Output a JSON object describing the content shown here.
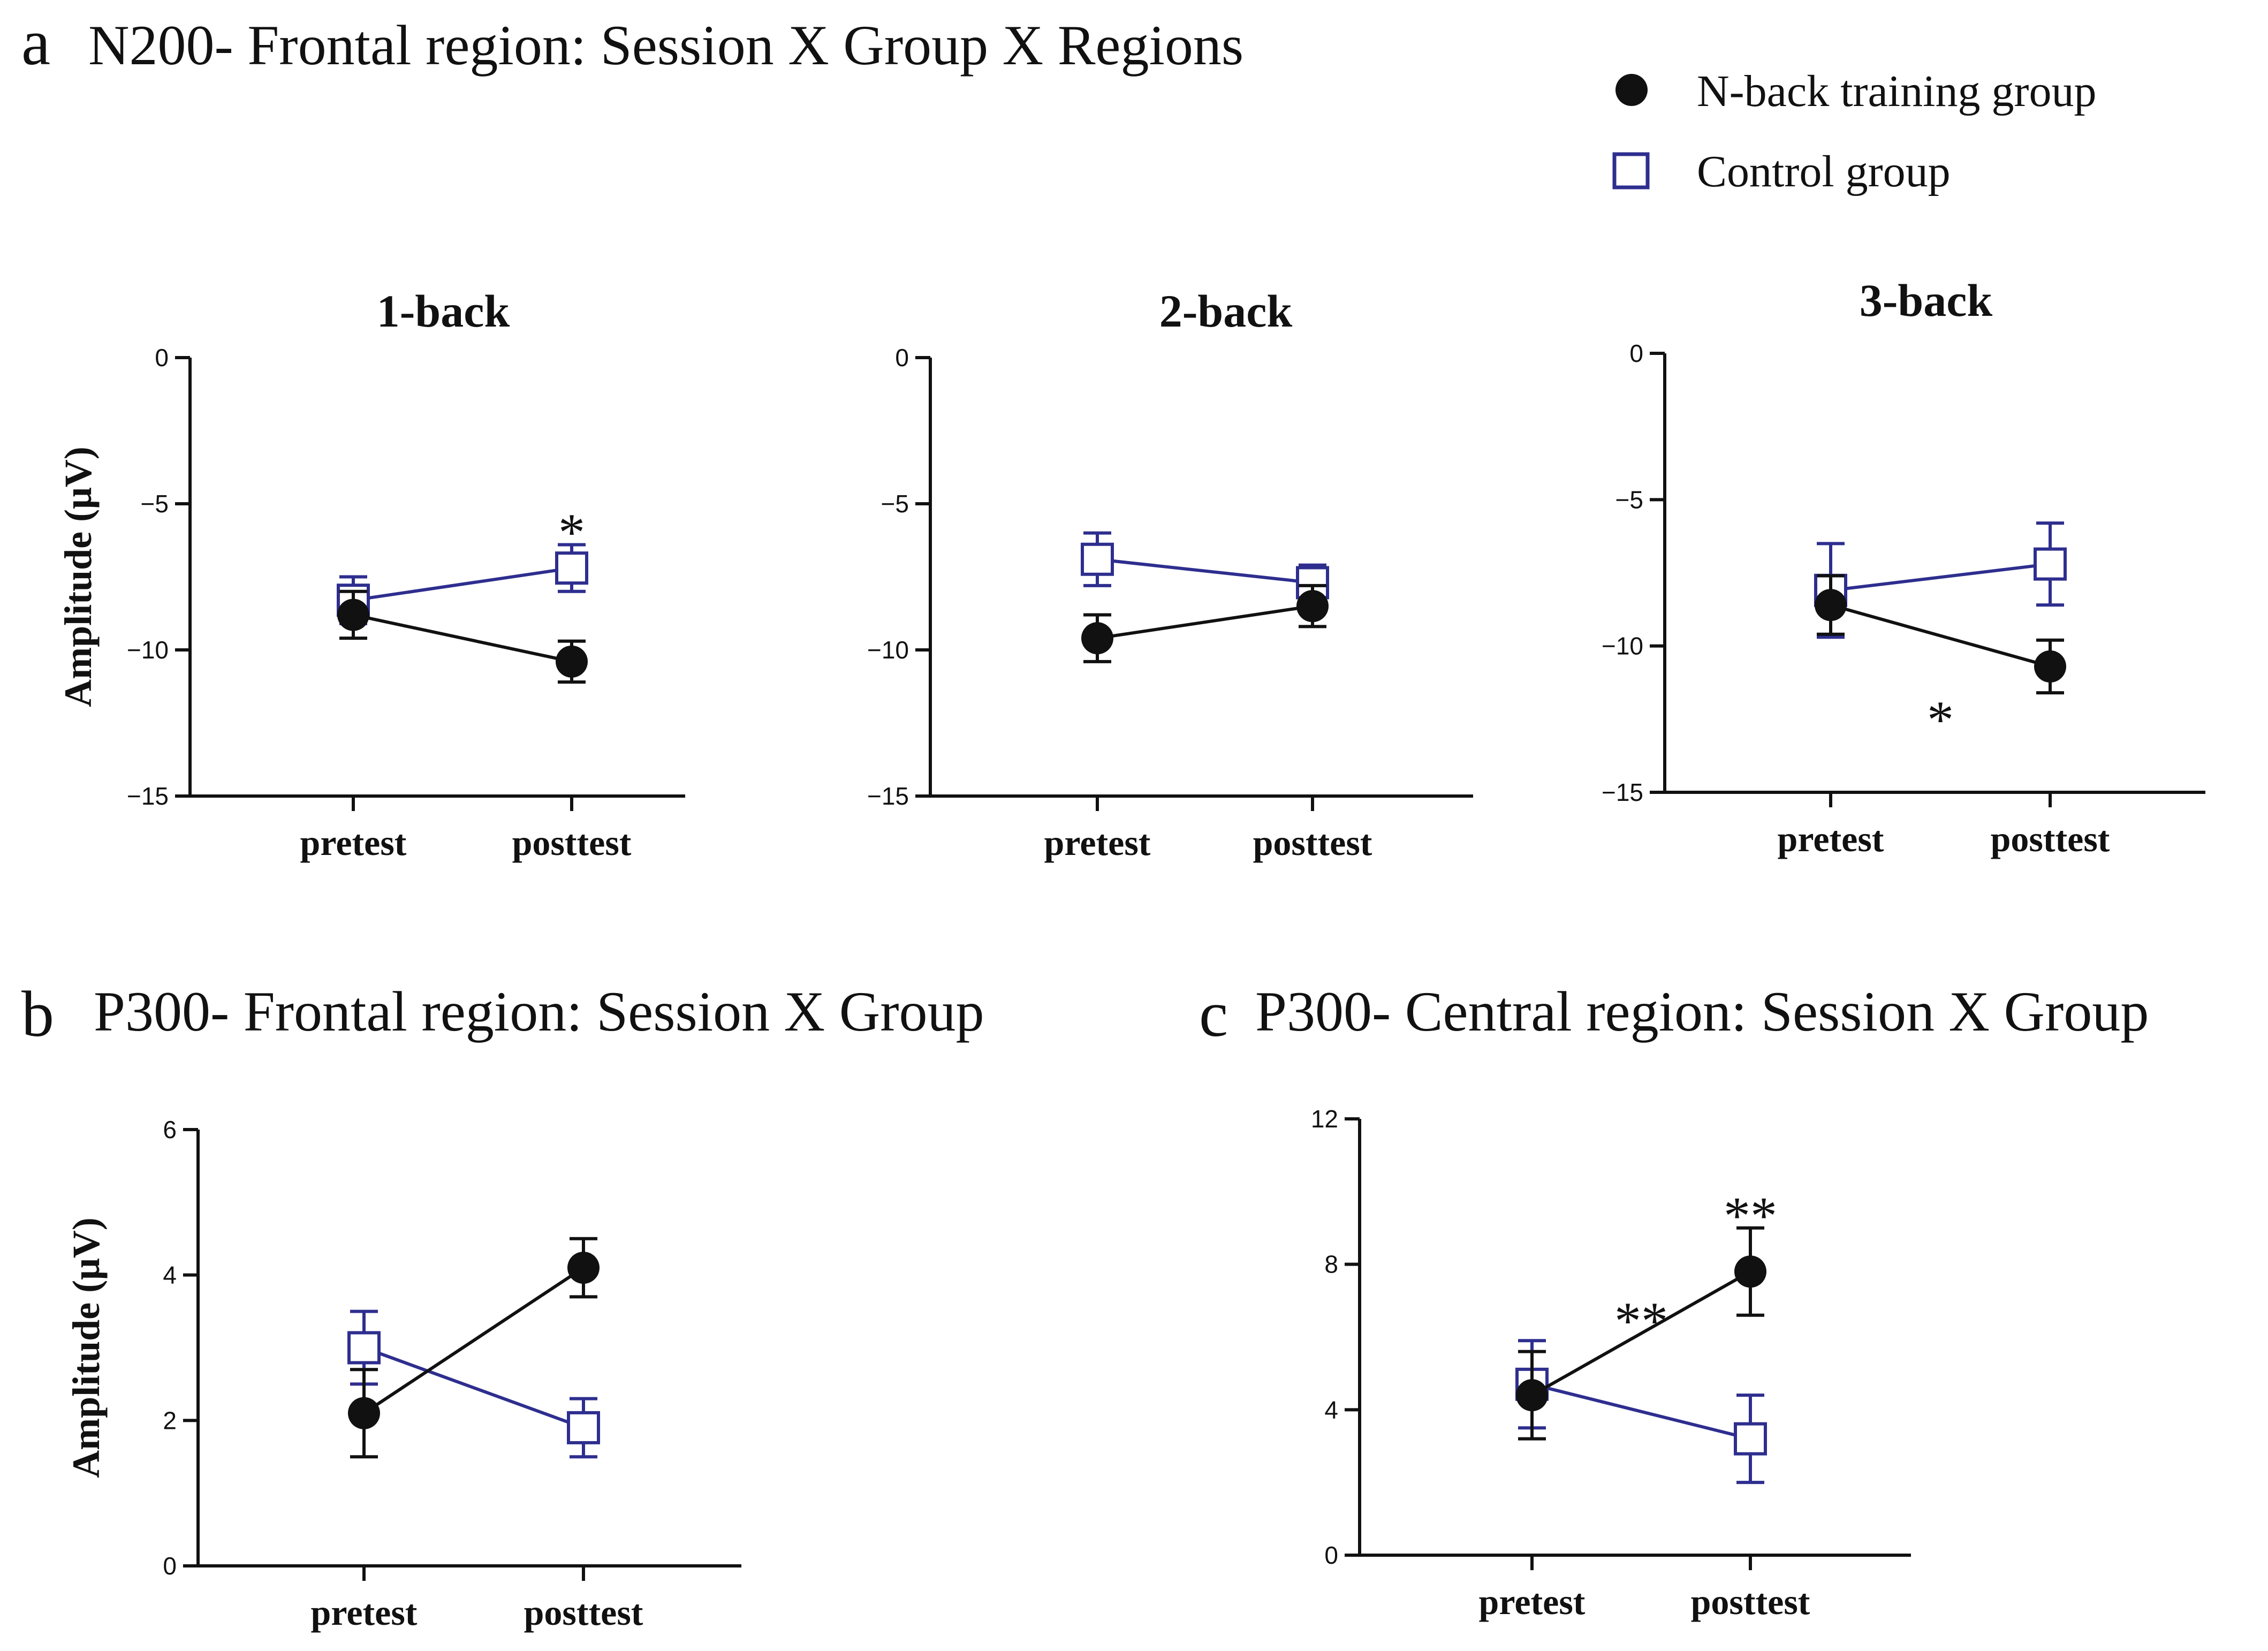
{
  "figure": {
    "panels": [
      {
        "letter": "a",
        "title": "N200- Frontal region:  Session X Group X Regions"
      },
      {
        "letter": "b",
        "title": "P300- Frontal region: Session X Group"
      },
      {
        "letter": "c",
        "title": "P300- Central region: Session X Group"
      }
    ],
    "legend": [
      {
        "label": "N-back training group",
        "marker": "filled-circle",
        "color": "#111111"
      },
      {
        "label": "Control group",
        "marker": "open-square",
        "color": "#2e2e8f"
      }
    ]
  },
  "chart_data": [
    {
      "type": "line",
      "panel": "a",
      "title": "1-back",
      "xlabel": "",
      "ylabel": "Amplitude (μV)",
      "categories": [
        "pretest",
        "posttest"
      ],
      "ylim": [
        -15,
        0
      ],
      "yticks": [
        0,
        -5,
        -10,
        -15
      ],
      "series": [
        {
          "name": "N-back training group",
          "values": [
            -8.8,
            -10.4
          ],
          "errors": [
            0.8,
            0.7
          ]
        },
        {
          "name": "Control group",
          "values": [
            -8.3,
            -7.2
          ],
          "errors": [
            0.8,
            0.8
          ]
        }
      ],
      "annotations": [
        {
          "text": "*",
          "anchor": "Control group posttest"
        }
      ]
    },
    {
      "type": "line",
      "panel": "a",
      "title": "2-back",
      "xlabel": "",
      "ylabel": "",
      "categories": [
        "pretest",
        "posttest"
      ],
      "ylim": [
        -15,
        0
      ],
      "yticks": [
        0,
        -5,
        -10,
        -15
      ],
      "series": [
        {
          "name": "N-back training group",
          "values": [
            -9.6,
            -8.5
          ],
          "errors": [
            0.8,
            0.7
          ]
        },
        {
          "name": "Control group",
          "values": [
            -6.9,
            -7.7
          ],
          "errors": [
            0.9,
            0.6
          ]
        }
      ],
      "annotations": []
    },
    {
      "type": "line",
      "panel": "a",
      "title": "3-back",
      "xlabel": "",
      "ylabel": "",
      "categories": [
        "pretest",
        "posttest"
      ],
      "ylim": [
        -15,
        0
      ],
      "yticks": [
        0,
        -5,
        -10,
        -15
      ],
      "series": [
        {
          "name": "N-back training group",
          "values": [
            -8.6,
            -10.7
          ],
          "errors": [
            1.0,
            0.9
          ]
        },
        {
          "name": "Control group",
          "values": [
            -8.1,
            -7.2
          ],
          "errors": [
            1.6,
            1.4
          ]
        }
      ],
      "annotations": [
        {
          "text": "*",
          "anchor": "between sessions"
        }
      ]
    },
    {
      "type": "line",
      "panel": "b",
      "title": "",
      "xlabel": "",
      "ylabel": "Amplitude (μV)",
      "categories": [
        "pretest",
        "posttest"
      ],
      "ylim": [
        0,
        6
      ],
      "yticks": [
        0,
        2,
        4,
        6
      ],
      "series": [
        {
          "name": "N-back training group",
          "values": [
            2.1,
            4.1
          ],
          "errors": [
            0.6,
            0.4
          ]
        },
        {
          "name": "Control group",
          "values": [
            3.0,
            1.9
          ],
          "errors": [
            0.5,
            0.4
          ]
        }
      ],
      "annotations": []
    },
    {
      "type": "line",
      "panel": "c",
      "title": "",
      "xlabel": "",
      "ylabel": "",
      "categories": [
        "pretest",
        "posttest"
      ],
      "ylim": [
        0,
        12
      ],
      "yticks": [
        0,
        4,
        8,
        12
      ],
      "series": [
        {
          "name": "N-back training group",
          "values": [
            4.4,
            7.8
          ],
          "errors": [
            1.2,
            1.2
          ]
        },
        {
          "name": "Control group",
          "values": [
            4.7,
            3.2
          ],
          "errors": [
            1.2,
            1.2
          ]
        }
      ],
      "annotations": [
        {
          "text": "**",
          "anchor": "between sessions"
        },
        {
          "text": "**",
          "anchor": "N-back training group posttest"
        }
      ]
    }
  ]
}
